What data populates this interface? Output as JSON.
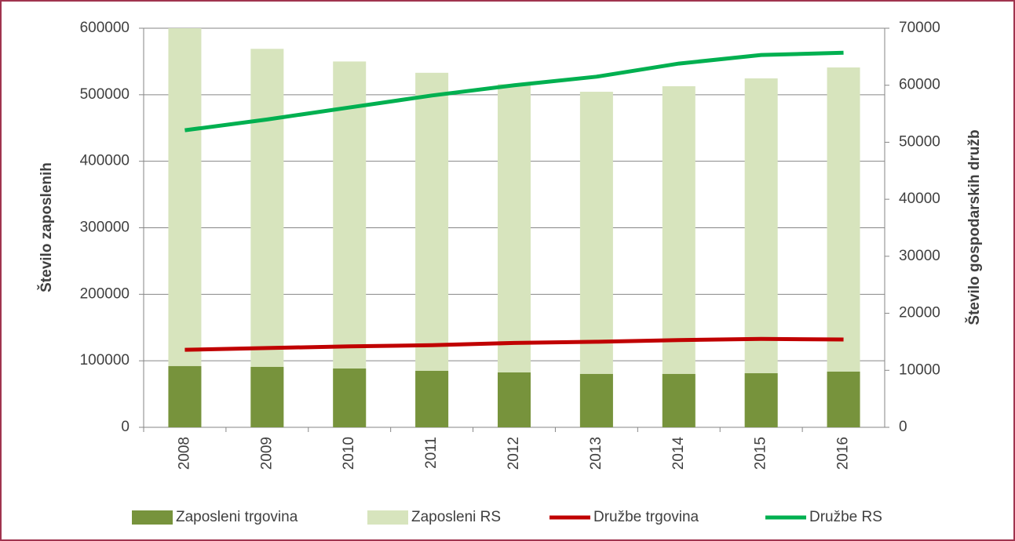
{
  "chart_data": {
    "type": "bar",
    "categories": [
      "2008",
      "2009",
      "2010",
      "2011",
      "2012",
      "2013",
      "2014",
      "2015",
      "2016"
    ],
    "y_label": "Število zaposlenih",
    "y2_label": "Število gospodarskih družb",
    "series": [
      {
        "name": "Zaposleni trgovina",
        "type": "bar",
        "color": "#77933c",
        "values": [
          92000,
          90800,
          88400,
          84900,
          82500,
          80200,
          80200,
          81300,
          83700
        ]
      },
      {
        "name": "Zaposleni RS",
        "type": "bar",
        "color": "#d7e4bd",
        "values": [
          600000,
          569000,
          550000,
          533000,
          516000,
          504500,
          512800,
          524600,
          541000
        ]
      },
      {
        "name": "Družbe trgovina",
        "type": "line",
        "axis": "y2",
        "color": "#c00000",
        "values": [
          13600,
          13900,
          14200,
          14400,
          14800,
          15000,
          15300,
          15500,
          15400
        ]
      },
      {
        "name": "Družbe RS",
        "type": "line",
        "axis": "y2",
        "color": "#00b050",
        "values": [
          52100,
          54000,
          56100,
          58200,
          60000,
          61500,
          63800,
          65300,
          65700
        ]
      }
    ],
    "ylim": [
      0,
      600000
    ],
    "yticks": [
      0,
      100000,
      200000,
      300000,
      400000,
      500000,
      600000
    ],
    "y2lim": [
      0,
      70000
    ],
    "y2ticks": [
      0,
      10000,
      20000,
      30000,
      40000,
      50000,
      60000,
      70000
    ],
    "grid": true,
    "legend": "bottom"
  }
}
